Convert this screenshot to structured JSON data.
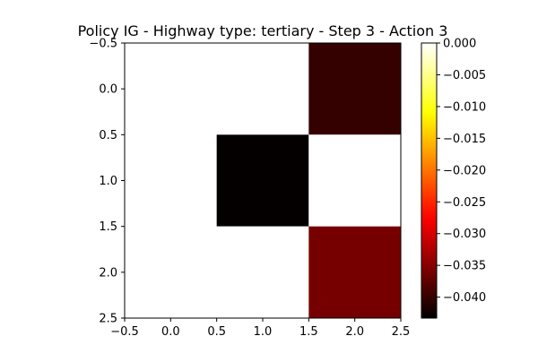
{
  "chart_data": {
    "type": "heatmap",
    "title": "Policy IG - Highway type: tertiary - Step 3 - Action 3",
    "xlabel": "",
    "ylabel": "",
    "colormap": "hot",
    "xlim": [
      -0.5,
      2.5
    ],
    "ylim": [
      2.5,
      -0.5
    ],
    "x_ticks": [
      -0.5,
      0.0,
      0.5,
      1.0,
      1.5,
      2.0,
      2.5
    ],
    "x_tick_labels": [
      "−0.5",
      "0.0",
      "0.5",
      "1.0",
      "1.5",
      "2.0",
      "2.5"
    ],
    "y_ticks": [
      -0.5,
      0.0,
      0.5,
      1.0,
      1.5,
      2.0,
      2.5
    ],
    "y_tick_labels": [
      "−0.5",
      "0.0",
      "0.5",
      "1.0",
      "1.5",
      "2.0",
      "2.5"
    ],
    "rows": [
      0,
      1,
      2
    ],
    "columns": [
      0,
      1,
      2
    ],
    "values": [
      [
        0.0,
        0.0,
        -0.04
      ],
      [
        0.0,
        -0.043,
        0.0
      ],
      [
        0.0,
        0.0,
        -0.036
      ]
    ],
    "colorbar": {
      "min": -0.0433,
      "max": 0.0,
      "ticks": [
        0.0,
        -0.005,
        -0.01,
        -0.015,
        -0.02,
        -0.025,
        -0.03,
        -0.035,
        -0.04
      ],
      "tick_labels": [
        "0.000",
        "−0.005",
        "−0.010",
        "−0.015",
        "−0.020",
        "−0.025",
        "−0.030",
        "−0.035",
        "−0.040"
      ]
    },
    "grid": false,
    "legend": "none"
  }
}
